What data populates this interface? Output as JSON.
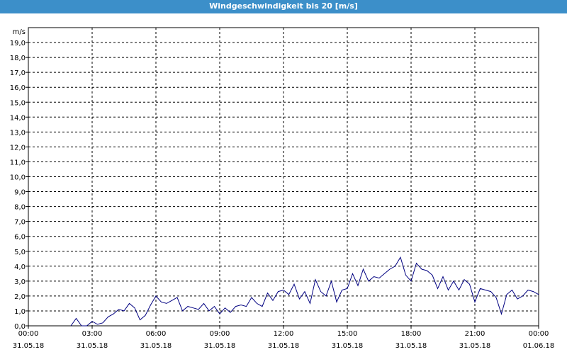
{
  "window": {
    "title": "Windgeschwindigkeit bis 20 [m/s]"
  },
  "chart_data": {
    "type": "line",
    "title": "Windgeschwindigkeit bis 20 [m/s]",
    "yunit": "m/s",
    "ylim": [
      0,
      20
    ],
    "yticks": [
      "0,0",
      "1,0",
      "2,0",
      "3,0",
      "4,0",
      "5,0",
      "6,0",
      "7,0",
      "8,0",
      "9,0",
      "10,0",
      "11,0",
      "12,0",
      "13,0",
      "14,0",
      "15,0",
      "16,0",
      "17,0",
      "18,0",
      "19,0"
    ],
    "xlim_hours": [
      0,
      24
    ],
    "xticks": [
      {
        "hour": 0,
        "time": "00:00",
        "date": "31.05.18"
      },
      {
        "hour": 3,
        "time": "03:00",
        "date": "31.05.18"
      },
      {
        "hour": 6,
        "time": "06:00",
        "date": "31.05.18"
      },
      {
        "hour": 9,
        "time": "09:00",
        "date": "31.05.18"
      },
      {
        "hour": 12,
        "time": "12:00",
        "date": "31.05.18"
      },
      {
        "hour": 15,
        "time": "15:00",
        "date": "31.05.18"
      },
      {
        "hour": 18,
        "time": "18:00",
        "date": "31.05.18"
      },
      {
        "hour": 21,
        "time": "21:00",
        "date": "31.05.18"
      },
      {
        "hour": 24,
        "time": "00:00",
        "date": "01.06.18"
      }
    ],
    "grid": true,
    "series": [
      {
        "color": "#000080",
        "x": [
          2.0,
          2.25,
          2.5,
          2.75,
          3.0,
          3.25,
          3.5,
          3.75,
          4.0,
          4.25,
          4.5,
          4.75,
          5.0,
          5.25,
          5.5,
          5.75,
          6.0,
          6.25,
          6.5,
          6.75,
          7.0,
          7.25,
          7.5,
          7.75,
          8.0,
          8.25,
          8.5,
          8.75,
          9.0,
          9.25,
          9.5,
          9.75,
          10.0,
          10.25,
          10.5,
          10.75,
          11.0,
          11.25,
          11.5,
          11.75,
          12.0,
          12.25,
          12.5,
          12.75,
          13.0,
          13.25,
          13.5,
          13.75,
          14.0,
          14.25,
          14.5,
          14.75,
          15.0,
          15.25,
          15.5,
          15.75,
          16.0,
          16.25,
          16.5,
          16.75,
          17.0,
          17.25,
          17.5,
          17.75,
          18.0,
          18.25,
          18.5,
          18.75,
          19.0,
          19.25,
          19.5,
          19.75,
          20.0,
          20.25,
          20.5,
          20.75,
          21.0,
          21.25,
          21.5,
          21.75,
          22.0,
          22.25,
          22.5,
          22.75,
          23.0,
          23.25,
          23.5,
          23.75,
          24.0
        ],
        "y": [
          0.0,
          0.5,
          0.0,
          0.0,
          0.3,
          0.1,
          0.2,
          0.6,
          0.8,
          1.1,
          1.0,
          1.5,
          1.2,
          0.4,
          0.7,
          1.4,
          2.0,
          1.6,
          1.5,
          1.7,
          1.9,
          1.0,
          1.3,
          1.2,
          1.1,
          1.5,
          1.0,
          1.3,
          0.8,
          1.2,
          0.9,
          1.3,
          1.4,
          1.3,
          1.9,
          1.5,
          1.3,
          2.2,
          1.7,
          2.3,
          2.4,
          2.1,
          2.8,
          1.8,
          2.3,
          1.5,
          3.1,
          2.3,
          2.0,
          3.0,
          1.6,
          2.4,
          2.5,
          3.5,
          2.7,
          3.8,
          3.0,
          3.3,
          3.2,
          3.5,
          3.8,
          4.0,
          4.6,
          3.4,
          3.0,
          4.2,
          3.8,
          3.7,
          3.4,
          2.5,
          3.3,
          2.4,
          3.0,
          2.4,
          3.1,
          2.8,
          1.6,
          2.5,
          2.4,
          2.3,
          1.9,
          0.8,
          2.1,
          2.4,
          1.8,
          2.0,
          2.4,
          2.3,
          2.1
        ]
      }
    ]
  }
}
